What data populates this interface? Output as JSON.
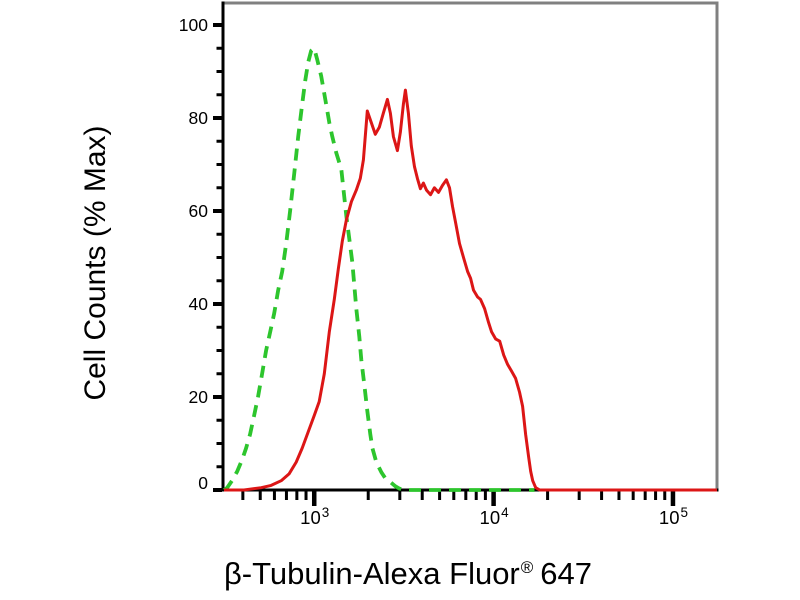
{
  "chart_data": {
    "type": "line",
    "subtype": "flow-cytometry-histogram-overlay",
    "title": "",
    "ylabel": "Cell Counts (% Max)",
    "xlabel": "β-Tubulin-Alexa Fluor® 647",
    "xlabel_parts": {
      "text": "β-Tubulin-Alexa Fluor",
      "registered": "®",
      "suffix": "647"
    },
    "x_scale": "log",
    "xlim": [
      310,
      176000
    ],
    "ylim": [
      0,
      100
    ],
    "grid": false,
    "legend": null,
    "style": {
      "background": "#ffffff",
      "axis_color": "#000000",
      "frame_color": "#808080",
      "control_color": "#2dc52d",
      "sample_color": "#dc1616"
    },
    "y_major_ticks": [
      {
        "value": 0,
        "label": "0"
      },
      {
        "value": 20,
        "label": "20"
      },
      {
        "value": 40,
        "label": "40"
      },
      {
        "value": 60,
        "label": "60"
      },
      {
        "value": 80,
        "label": "80"
      },
      {
        "value": 100,
        "label": "100"
      }
    ],
    "y_minor_tick_step": 5,
    "x_major_ticks": [
      {
        "value": 1000,
        "base": "10",
        "exponent": "3"
      },
      {
        "value": 10000,
        "base": "10",
        "exponent": "4"
      },
      {
        "value": 100000,
        "base": "10",
        "exponent": "5"
      }
    ],
    "x_minor_ticks": [
      400,
      500,
      600,
      700,
      800,
      900,
      2000,
      3000,
      4000,
      5000,
      6000,
      7000,
      8000,
      9000,
      20000,
      30000,
      40000,
      50000,
      60000,
      70000,
      80000,
      90000
    ],
    "series": [
      {
        "name": "green-dashed-control",
        "color": "#2dc52d",
        "line_style": "dashed",
        "line_width": 3.8,
        "points": [
          [
            315,
            0
          ],
          [
            327,
            0.5
          ],
          [
            348,
            2
          ],
          [
            372,
            4
          ],
          [
            396,
            6.5
          ],
          [
            417,
            9
          ],
          [
            439,
            12
          ],
          [
            462,
            16
          ],
          [
            486,
            20
          ],
          [
            512,
            25
          ],
          [
            539,
            30
          ],
          [
            568,
            34
          ],
          [
            598,
            38
          ],
          [
            630,
            43
          ],
          [
            663,
            47
          ],
          [
            698,
            53
          ],
          [
            734,
            60
          ],
          [
            773,
            68
          ],
          [
            814,
            76
          ],
          [
            857,
            83
          ],
          [
            891,
            88
          ],
          [
            926,
            92
          ],
          [
            962,
            94.5
          ],
          [
            1000,
            95
          ],
          [
            1040,
            92.5
          ],
          [
            1094,
            89
          ],
          [
            1152,
            84
          ],
          [
            1213,
            79
          ],
          [
            1261,
            76
          ],
          [
            1327,
            72.5
          ],
          [
            1416,
            69
          ],
          [
            1472,
            63
          ],
          [
            1509,
            59
          ],
          [
            1569,
            54
          ],
          [
            1630,
            49
          ],
          [
            1672,
            44
          ],
          [
            1717,
            39
          ],
          [
            1783,
            33
          ],
          [
            1831,
            28
          ],
          [
            1903,
            22.5
          ],
          [
            1977,
            17
          ],
          [
            2055,
            12
          ],
          [
            2109,
            9
          ],
          [
            2219,
            6
          ],
          [
            2368,
            3.8
          ],
          [
            2494,
            2.5
          ],
          [
            2659,
            1.7
          ],
          [
            2835,
            0.8
          ],
          [
            2985,
            0.3
          ],
          [
            3184,
            0
          ],
          [
            5000,
            0
          ],
          [
            8000,
            0
          ],
          [
            12000,
            0
          ],
          [
            16900,
            0
          ]
        ]
      },
      {
        "name": "red-solid-stained",
        "color": "#dc1616",
        "line_style": "solid",
        "line_width": 3,
        "points": [
          [
            314,
            0
          ],
          [
            406,
            0
          ],
          [
            506,
            0.5
          ],
          [
            575,
            1
          ],
          [
            654,
            2
          ],
          [
            725,
            3.5
          ],
          [
            793,
            6
          ],
          [
            857,
            9
          ],
          [
            926,
            12.5
          ],
          [
            1000,
            16
          ],
          [
            1066,
            19
          ],
          [
            1138,
            25
          ],
          [
            1213,
            34
          ],
          [
            1294,
            41
          ],
          [
            1362,
            47.5
          ],
          [
            1433,
            53.5
          ],
          [
            1509,
            58
          ],
          [
            1611,
            62
          ],
          [
            1717,
            64.5
          ],
          [
            1807,
            67
          ],
          [
            1879,
            71
          ],
          [
            1977,
            81.5
          ],
          [
            2081,
            79
          ],
          [
            2191,
            76.5
          ],
          [
            2306,
            78
          ],
          [
            2427,
            81
          ],
          [
            2558,
            84
          ],
          [
            2659,
            81
          ],
          [
            2762,
            76
          ],
          [
            2910,
            73
          ],
          [
            3022,
            77
          ],
          [
            3140,
            83
          ],
          [
            3222,
            86
          ],
          [
            3349,
            81
          ],
          [
            3477,
            74
          ],
          [
            3621,
            69.5
          ],
          [
            3760,
            67
          ],
          [
            3908,
            64.8
          ],
          [
            4063,
            66
          ],
          [
            4224,
            64.5
          ],
          [
            4447,
            63.5
          ],
          [
            4678,
            65
          ],
          [
            4930,
            64
          ],
          [
            5188,
            65.5
          ],
          [
            5458,
            66.7
          ],
          [
            5675,
            65
          ],
          [
            5901,
            61
          ],
          [
            6138,
            57.5
          ],
          [
            6457,
            53
          ],
          [
            6792,
            50
          ],
          [
            7161,
            47
          ],
          [
            7447,
            45.5
          ],
          [
            7727,
            43
          ],
          [
            8147,
            41.5
          ],
          [
            8454,
            41
          ],
          [
            8912,
            39
          ],
          [
            9376,
            36
          ],
          [
            9753,
            34
          ],
          [
            10260,
            32.5
          ],
          [
            10810,
            32
          ],
          [
            11380,
            29
          ],
          [
            11970,
            27
          ],
          [
            12620,
            25.5
          ],
          [
            13270,
            24
          ],
          [
            13960,
            21
          ],
          [
            14520,
            18
          ],
          [
            15090,
            12
          ],
          [
            15690,
            7
          ],
          [
            16100,
            4
          ],
          [
            16520,
            2
          ],
          [
            17170,
            0.5
          ],
          [
            18080,
            0
          ],
          [
            40000,
            0
          ],
          [
            90000,
            0
          ],
          [
            176000,
            0
          ]
        ]
      }
    ]
  }
}
